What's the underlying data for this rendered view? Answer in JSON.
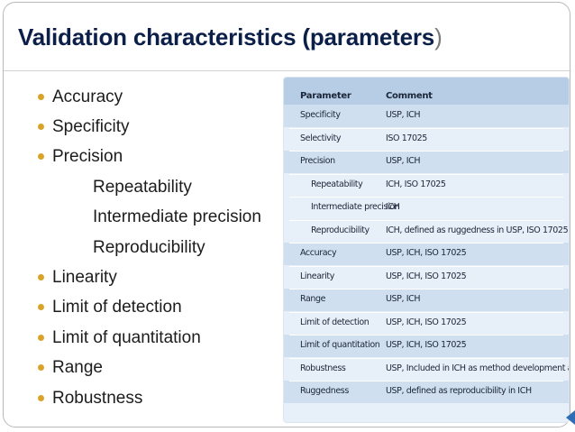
{
  "title": {
    "main": "Validation characteristics (parameters",
    "close_paren": ")"
  },
  "bullets": [
    {
      "label": "Accuracy",
      "level": 1
    },
    {
      "label": "Specificity",
      "level": 1
    },
    {
      "label": "Precision",
      "level": 1
    },
    {
      "label": "Repeatability",
      "level": 2
    },
    {
      "label": "Intermediate precision",
      "level": 2
    },
    {
      "label": "Reproducibility",
      "level": 2
    },
    {
      "label": "Linearity",
      "level": 1
    },
    {
      "label": "Limit of detection",
      "level": 1
    },
    {
      "label": "Limit of quantitation",
      "level": 1
    },
    {
      "label": "Range",
      "level": 1
    },
    {
      "label": "Robustness",
      "level": 1
    }
  ],
  "table": {
    "headers": {
      "parameter": "Parameter",
      "comment": "Comment"
    },
    "rows": [
      {
        "parameter": "Specificity",
        "comment": "USP, ICH",
        "indent": false
      },
      {
        "parameter": "Selectivity",
        "comment": "ISO 17025",
        "indent": false
      },
      {
        "parameter": "Precision",
        "comment": "USP, ICH",
        "indent": false
      },
      {
        "parameter": "Repeatability",
        "comment": "ICH, ISO 17025",
        "indent": true
      },
      {
        "parameter": "Intermediate precision",
        "comment": "ICH",
        "indent": true
      },
      {
        "parameter": "Reproducibility",
        "comment": "ICH, defined as ruggedness in USP, ISO 17025",
        "indent": true
      },
      {
        "parameter": "Accuracy",
        "comment": "USP, ICH, ISO 17025",
        "indent": false
      },
      {
        "parameter": "Linearity",
        "comment": "USP, ICH, ISO 17025",
        "indent": false
      },
      {
        "parameter": "Range",
        "comment": "USP, ICH",
        "indent": false
      },
      {
        "parameter": "Limit of detection",
        "comment": "USP, ICH, ISO 17025",
        "indent": false
      },
      {
        "parameter": "Limit of quantitation",
        "comment": "USP, ICH, ISO 17025",
        "indent": false
      },
      {
        "parameter": "Robustness",
        "comment": "USP, Included in ICH as method development activity, ISO",
        "indent": false
      },
      {
        "parameter": "Ruggedness",
        "comment": "USP, defined as reproducibility in ICH",
        "indent": false
      }
    ]
  },
  "colors": {
    "title": "#0b1f48",
    "bullet": "#d9a327",
    "table_header": "#b7cde6",
    "table_body": "#e7eff8"
  }
}
